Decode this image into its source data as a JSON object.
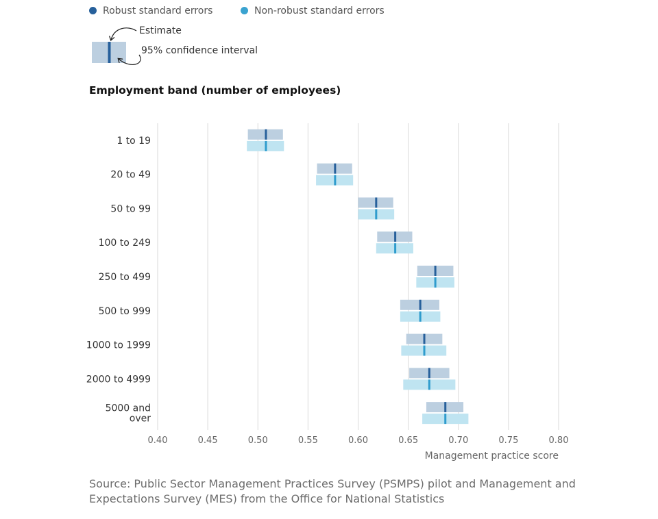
{
  "legend": {
    "robust": "Robust standard errors",
    "nonrobust": "Non-robust standard errors"
  },
  "key": {
    "estimate": "Estimate",
    "ci": "95% confidence interval"
  },
  "colors": {
    "robust_dot": "#27609b",
    "robust_band": "#bccfe0",
    "robust_tick": "#27609b",
    "nonrobust_dot": "#3aa3d0",
    "nonrobust_band": "#bfe4f1",
    "nonrobust_tick": "#2f9ccd",
    "grid": "#d9d9d9",
    "axis_text": "#666666"
  },
  "group_title": "Employment band (number of employees)",
  "source": "Source: Public Sector Management Practices Survey (PSMPS) pilot and Management and Expectations Survey (MES) from the Office for National Statistics",
  "chart_data": {
    "type": "forest",
    "xlabel": "Management practice score",
    "ylabel": "Employment band (number of employees)",
    "xlim": [
      0.4,
      0.8
    ],
    "xticks": [
      "0.40",
      "0.45",
      "0.50",
      "0.55",
      "0.60",
      "0.65",
      "0.70",
      "0.75",
      "0.80"
    ],
    "grid": true,
    "categories": [
      [
        "1 to 19"
      ],
      [
        "20 to 49"
      ],
      [
        "50 to 99"
      ],
      [
        "100 to 249"
      ],
      [
        "250 to 499"
      ],
      [
        "500 to 999"
      ],
      [
        "1000 to 1999"
      ],
      [
        "2000 to 4999"
      ],
      [
        "5000 and",
        "over"
      ]
    ],
    "series": [
      {
        "name": "Robust standard errors",
        "estimate": [
          0.508,
          0.577,
          0.618,
          0.637,
          0.677,
          0.662,
          0.666,
          0.671,
          0.687
        ],
        "lower": [
          0.49,
          0.559,
          0.6,
          0.619,
          0.659,
          0.642,
          0.648,
          0.651,
          0.668
        ],
        "upper": [
          0.525,
          0.594,
          0.635,
          0.654,
          0.695,
          0.681,
          0.684,
          0.691,
          0.705
        ]
      },
      {
        "name": "Non-robust standard errors",
        "estimate": [
          0.508,
          0.577,
          0.618,
          0.637,
          0.677,
          0.662,
          0.666,
          0.671,
          0.687
        ],
        "lower": [
          0.489,
          0.558,
          0.6,
          0.618,
          0.658,
          0.642,
          0.643,
          0.645,
          0.664
        ],
        "upper": [
          0.526,
          0.595,
          0.636,
          0.655,
          0.696,
          0.682,
          0.688,
          0.697,
          0.71
        ]
      }
    ]
  }
}
